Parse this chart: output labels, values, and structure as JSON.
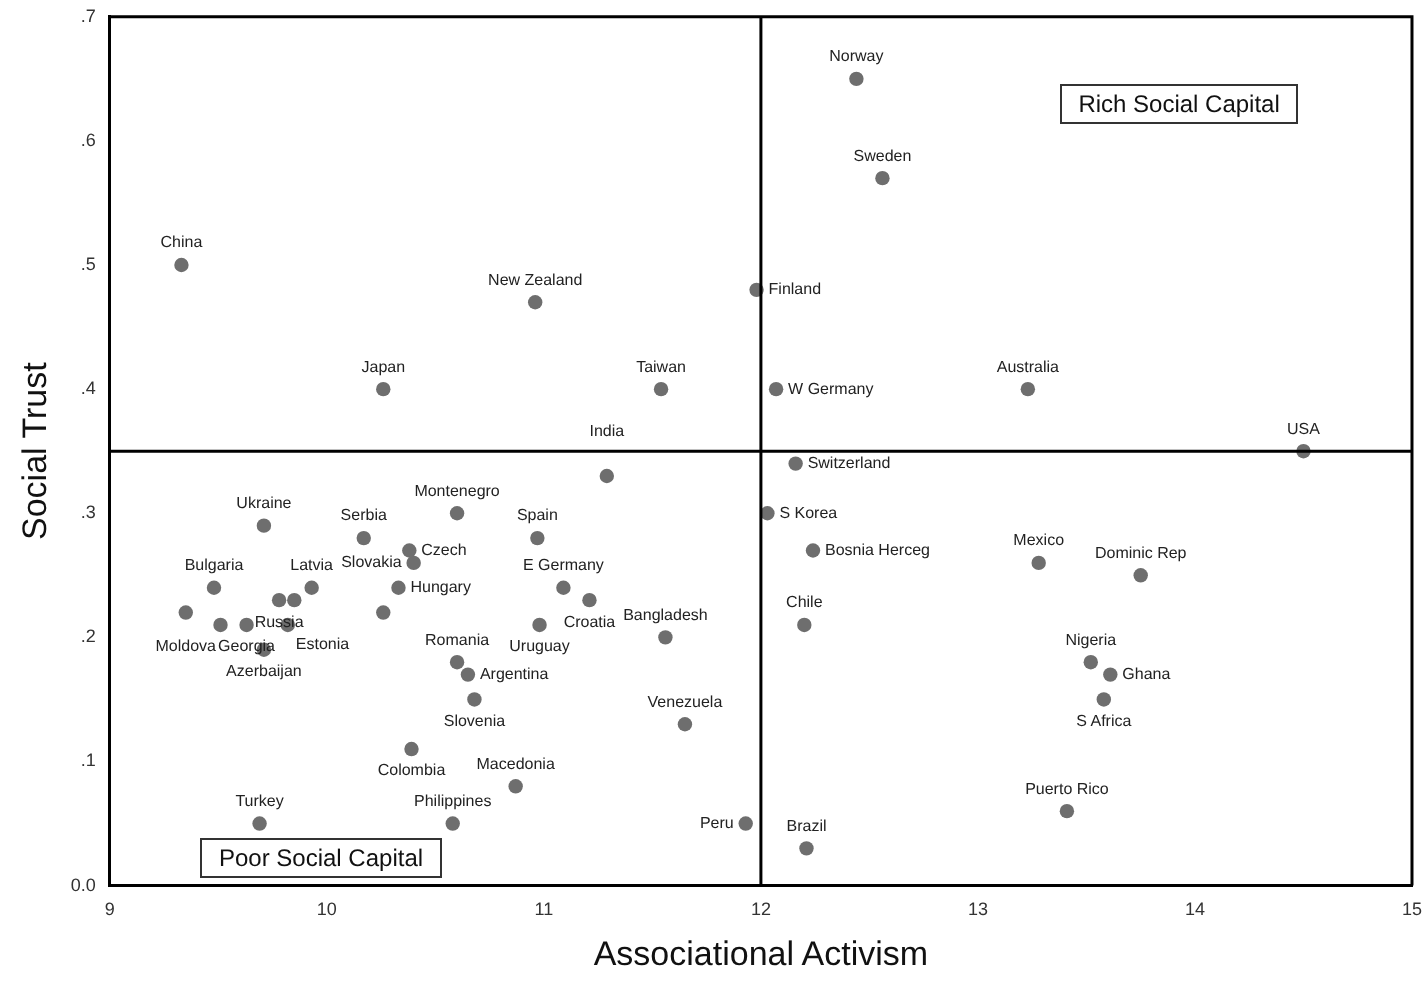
{
  "chart_data": {
    "type": "scatter",
    "xlabel": "Associational Activism",
    "ylabel": "Social Trust",
    "xlim": [
      9,
      15
    ],
    "xticks": [
      9,
      10,
      11,
      12,
      13,
      14,
      15
    ],
    "ylim": [
      0,
      0.7
    ],
    "yticks": [
      {
        "value": 0,
        "label": "0.0"
      },
      {
        "value": 0.1,
        "label": ".1"
      },
      {
        "value": 0.2,
        "label": ".2"
      },
      {
        "value": 0.3,
        "label": ".3"
      },
      {
        "value": 0.4,
        "label": ".4"
      },
      {
        "value": 0.5,
        "label": ".5"
      },
      {
        "value": 0.6,
        "label": ".6"
      },
      {
        "value": 0.7,
        "label": ".7"
      }
    ],
    "grid": false,
    "legend": false,
    "marker": "circle",
    "series": [
      {
        "color": "#6e6e6e",
        "x": [
          9.33,
          10.96,
          11.98,
          10.26,
          11.54,
          11.29,
          10.6,
          9.71,
          10.17,
          10.97,
          10.38,
          10.4,
          9.93,
          10.33,
          11.09,
          11.21,
          9.48,
          9.35,
          9.63,
          9.51,
          9.78,
          9.85,
          9.82,
          9.71,
          10.26,
          10.98,
          11.56,
          10.6,
          10.65,
          10.68,
          11.65,
          10.39,
          10.87,
          10.58,
          9.69,
          11.93,
          12.44,
          12.56,
          12.07,
          13.23,
          12.16,
          12.03,
          12.24,
          12.2,
          12.21,
          13.28,
          13.75,
          13.52,
          13.61,
          13.58,
          13.41,
          14.5
        ],
        "values": [
          0.5,
          0.47,
          0.48,
          0.4,
          0.4,
          0.33,
          0.3,
          0.29,
          0.28,
          0.28,
          0.27,
          0.26,
          0.24,
          0.24,
          0.24,
          0.23,
          0.24,
          0.22,
          0.21,
          0.21,
          0.23,
          0.23,
          0.21,
          0.19,
          0.22,
          0.21,
          0.2,
          0.18,
          0.17,
          0.15,
          0.13,
          0.11,
          0.08,
          0.05,
          0.05,
          0.05,
          0.65,
          0.57,
          0.4,
          0.4,
          0.34,
          0.3,
          0.27,
          0.21,
          0.03,
          0.26,
          0.25,
          0.18,
          0.17,
          0.15,
          0.06,
          0.35
        ]
      }
    ],
    "ref_lines": [
      {
        "axis": "x",
        "value": 12,
        "color": "#000000"
      },
      {
        "axis": "y",
        "value": 0.35,
        "color": "#000000"
      }
    ],
    "annotations": [
      "Rich Social Capital",
      "Poor Social Capital",
      {
        "text": "China",
        "x": 9.33,
        "y": 0.5
      },
      {
        "text": "New Zealand",
        "x": 10.96,
        "y": 0.47
      },
      {
        "text": "Finland",
        "x": 11.98,
        "y": 0.48
      },
      {
        "text": "Japan",
        "x": 10.26,
        "y": 0.4
      },
      {
        "text": "Taiwan",
        "x": 11.54,
        "y": 0.4
      },
      {
        "text": "India",
        "x": 11.29,
        "y": 0.33
      },
      {
        "text": "Montenegro",
        "x": 10.6,
        "y": 0.3
      },
      {
        "text": "Ukraine",
        "x": 9.71,
        "y": 0.29
      },
      {
        "text": "Serbia",
        "x": 10.17,
        "y": 0.28
      },
      {
        "text": "Spain",
        "x": 10.97,
        "y": 0.28
      },
      {
        "text": "Czech",
        "x": 10.38,
        "y": 0.27
      },
      {
        "text": "Slovakia",
        "x": 10.4,
        "y": 0.26
      },
      {
        "text": "Latvia",
        "x": 9.93,
        "y": 0.24
      },
      {
        "text": "Hungary",
        "x": 10.33,
        "y": 0.24
      },
      {
        "text": "E Germany",
        "x": 11.09,
        "y": 0.24
      },
      {
        "text": "Croatia",
        "x": 11.21,
        "y": 0.23
      },
      {
        "text": "Bulgaria",
        "x": 9.48,
        "y": 0.24
      },
      {
        "text": "Moldova",
        "x": 9.35,
        "y": 0.22
      },
      {
        "text": "Georgia",
        "x": 9.63,
        "y": 0.21
      },
      {
        "text": "Russia",
        "x": 9.78,
        "y": 0.23
      },
      {
        "text": "Estonia",
        "x": 9.82,
        "y": 0.21
      },
      {
        "text": "Azerbaijan",
        "x": 9.71,
        "y": 0.19
      },
      {
        "text": "Uruguay",
        "x": 10.98,
        "y": 0.21
      },
      {
        "text": "Bangladesh",
        "x": 11.56,
        "y": 0.2
      },
      {
        "text": "Romania",
        "x": 10.6,
        "y": 0.18
      },
      {
        "text": "Argentina",
        "x": 10.65,
        "y": 0.17
      },
      {
        "text": "Slovenia",
        "x": 10.68,
        "y": 0.15
      },
      {
        "text": "Venezuela",
        "x": 11.65,
        "y": 0.13
      },
      {
        "text": "Colombia",
        "x": 10.39,
        "y": 0.11
      },
      {
        "text": "Macedonia",
        "x": 10.87,
        "y": 0.08
      },
      {
        "text": "Philippines",
        "x": 10.58,
        "y": 0.05
      },
      {
        "text": "Turkey",
        "x": 9.69,
        "y": 0.05
      },
      {
        "text": "Peru",
        "x": 11.93,
        "y": 0.05
      },
      {
        "text": "Norway",
        "x": 12.44,
        "y": 0.65
      },
      {
        "text": "Sweden",
        "x": 12.56,
        "y": 0.57
      },
      {
        "text": "W Germany",
        "x": 12.07,
        "y": 0.4
      },
      {
        "text": "Australia",
        "x": 13.23,
        "y": 0.4
      },
      {
        "text": "Switzerland",
        "x": 12.16,
        "y": 0.34
      },
      {
        "text": "S Korea",
        "x": 12.03,
        "y": 0.3
      },
      {
        "text": "Bosnia Herceg",
        "x": 12.24,
        "y": 0.27
      },
      {
        "text": "Chile",
        "x": 12.2,
        "y": 0.21
      },
      {
        "text": "Brazil",
        "x": 12.21,
        "y": 0.03
      },
      {
        "text": "Mexico",
        "x": 13.28,
        "y": 0.26
      },
      {
        "text": "Dominic Rep",
        "x": 13.75,
        "y": 0.25
      },
      {
        "text": "Nigeria",
        "x": 13.52,
        "y": 0.18
      },
      {
        "text": "Ghana",
        "x": 13.61,
        "y": 0.17
      },
      {
        "text": "S Africa",
        "x": 13.58,
        "y": 0.15
      },
      {
        "text": "Puerto Rico",
        "x": 13.41,
        "y": 0.06
      },
      {
        "text": "USA",
        "x": 14.5,
        "y": 0.35
      }
    ]
  }
}
